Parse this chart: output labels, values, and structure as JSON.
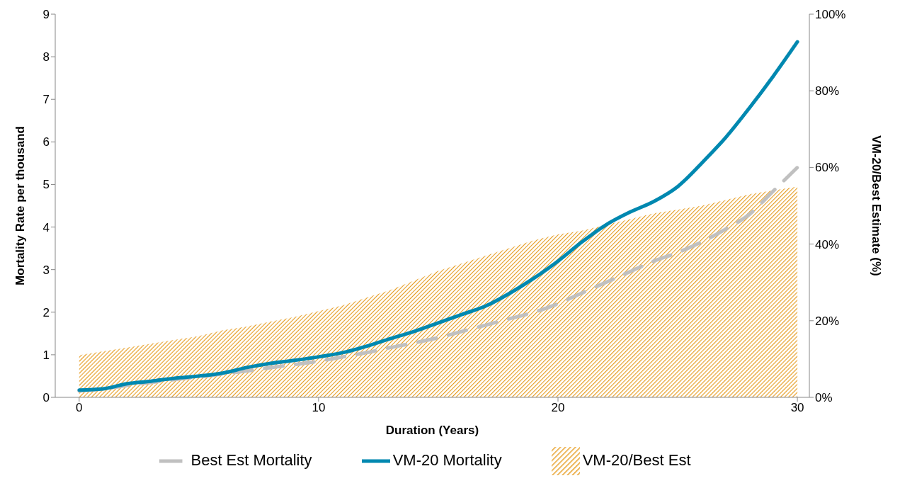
{
  "chart_data": {
    "type": "line",
    "xlabel": "Duration (Years)",
    "ylabel": "Mortality Rate per thousand",
    "y2label": "VM-20/Best Estimate (%)",
    "x": [
      0,
      1,
      2,
      3,
      4,
      5,
      6,
      7,
      8,
      9,
      10,
      11,
      12,
      13,
      14,
      15,
      16,
      17,
      18,
      19,
      20,
      21,
      22,
      23,
      24,
      25,
      26,
      27,
      28,
      29,
      30
    ],
    "xlim": [
      -1,
      30.5
    ],
    "xticks": [
      0,
      10,
      20,
      30
    ],
    "ylim": [
      0,
      9
    ],
    "yticks": [
      0,
      1,
      2,
      3,
      4,
      5,
      6,
      7,
      8,
      9
    ],
    "y2lim": [
      0,
      100
    ],
    "y2ticks": [
      {
        "value": 0,
        "label": "0%"
      },
      {
        "value": 20,
        "label": "20%"
      },
      {
        "value": 40,
        "label": "40%"
      },
      {
        "value": 60,
        "label": "60%"
      },
      {
        "value": 80,
        "label": "80%"
      },
      {
        "value": 100,
        "label": "100%"
      }
    ],
    "grid": false,
    "legend": "bottom",
    "marker": "none",
    "series": [
      {
        "name": "VM-20/Best Est",
        "type": "area",
        "axis": "y2",
        "color": "#e69b1e",
        "values": [
          11,
          12,
          13,
          14,
          15,
          16,
          17.5,
          18.5,
          19.8,
          21,
          22.5,
          24,
          26,
          28,
          30.5,
          33,
          35,
          37,
          39,
          41,
          42.5,
          43.5,
          45,
          46.5,
          48,
          49,
          50,
          51.5,
          53,
          54,
          55
        ]
      },
      {
        "name": "Best Est Mortality",
        "line_style": "dashed",
        "color": "#c0c0c0",
        "values": [
          0.15,
          0.2,
          0.28,
          0.35,
          0.42,
          0.48,
          0.55,
          0.62,
          0.7,
          0.77,
          0.85,
          0.95,
          1.05,
          1.17,
          1.28,
          1.4,
          1.55,
          1.7,
          1.85,
          2.0,
          2.2,
          2.45,
          2.7,
          2.95,
          3.2,
          3.4,
          3.65,
          3.95,
          4.3,
          4.85,
          5.4
        ]
      },
      {
        "name": "VM-20 Mortality",
        "line_style": "solid",
        "color": "#0088b0",
        "values": [
          0.17,
          0.2,
          0.32,
          0.38,
          0.45,
          0.5,
          0.57,
          0.7,
          0.8,
          0.87,
          0.95,
          1.05,
          1.2,
          1.38,
          1.55,
          1.75,
          1.95,
          2.15,
          2.45,
          2.8,
          3.2,
          3.65,
          4.05,
          4.35,
          4.6,
          4.95,
          5.5,
          6.1,
          6.8,
          7.55,
          8.35
        ]
      }
    ]
  }
}
